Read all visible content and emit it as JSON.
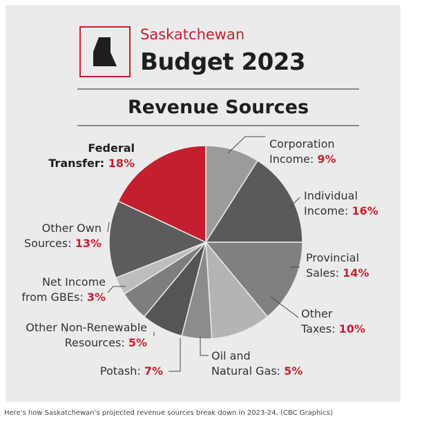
{
  "header": {
    "brand": "Saskatchewan",
    "year_title": "Budget 2023",
    "section_title": "Revenue Sources"
  },
  "caption": "Here's how Saskatchewan's projected revenue sources break down in 2023-24. (CBC Graphics)",
  "colors": {
    "accent": "#c8202f",
    "background": "#ebebeb"
  },
  "chart_data": {
    "type": "pie",
    "title": "Revenue Sources",
    "slices": [
      {
        "line1": "Corporation",
        "line2": "Income:",
        "pct_label": "9%",
        "value": 9,
        "color": "#9b9b9b"
      },
      {
        "line1": "Individual",
        "line2": "Income:",
        "pct_label": "16%",
        "value": 16,
        "color": "#5a5a5a"
      },
      {
        "line1": "Provincial",
        "line2": "Sales:",
        "pct_label": "14%",
        "value": 14,
        "color": "#808080"
      },
      {
        "line1": "Other",
        "line2": "Taxes:",
        "pct_label": "10%",
        "value": 10,
        "color": "#b4b4b4"
      },
      {
        "line1": "Oil and",
        "line2": "Natural Gas:",
        "pct_label": "5%",
        "value": 5,
        "color": "#8c8c8c"
      },
      {
        "line1": "",
        "line2": "Potash:",
        "pct_label": "7%",
        "value": 7,
        "color": "#555555"
      },
      {
        "line1": "Other Non-Renewable",
        "line2": "Resources:",
        "pct_label": "5%",
        "value": 5,
        "color": "#7e7e7e"
      },
      {
        "line1": "Net Income",
        "line2": "from GBEs:",
        "pct_label": "3%",
        "value": 3,
        "color": "#bdbdbd"
      },
      {
        "line1": "Other Own",
        "line2": "Sources:",
        "pct_label": "13%",
        "value": 13,
        "color": "#5c5c5c"
      },
      {
        "line1": "Federal",
        "line2": "Transfer:",
        "pct_label": "18%",
        "value": 18,
        "color": "#c41f2e"
      }
    ]
  }
}
